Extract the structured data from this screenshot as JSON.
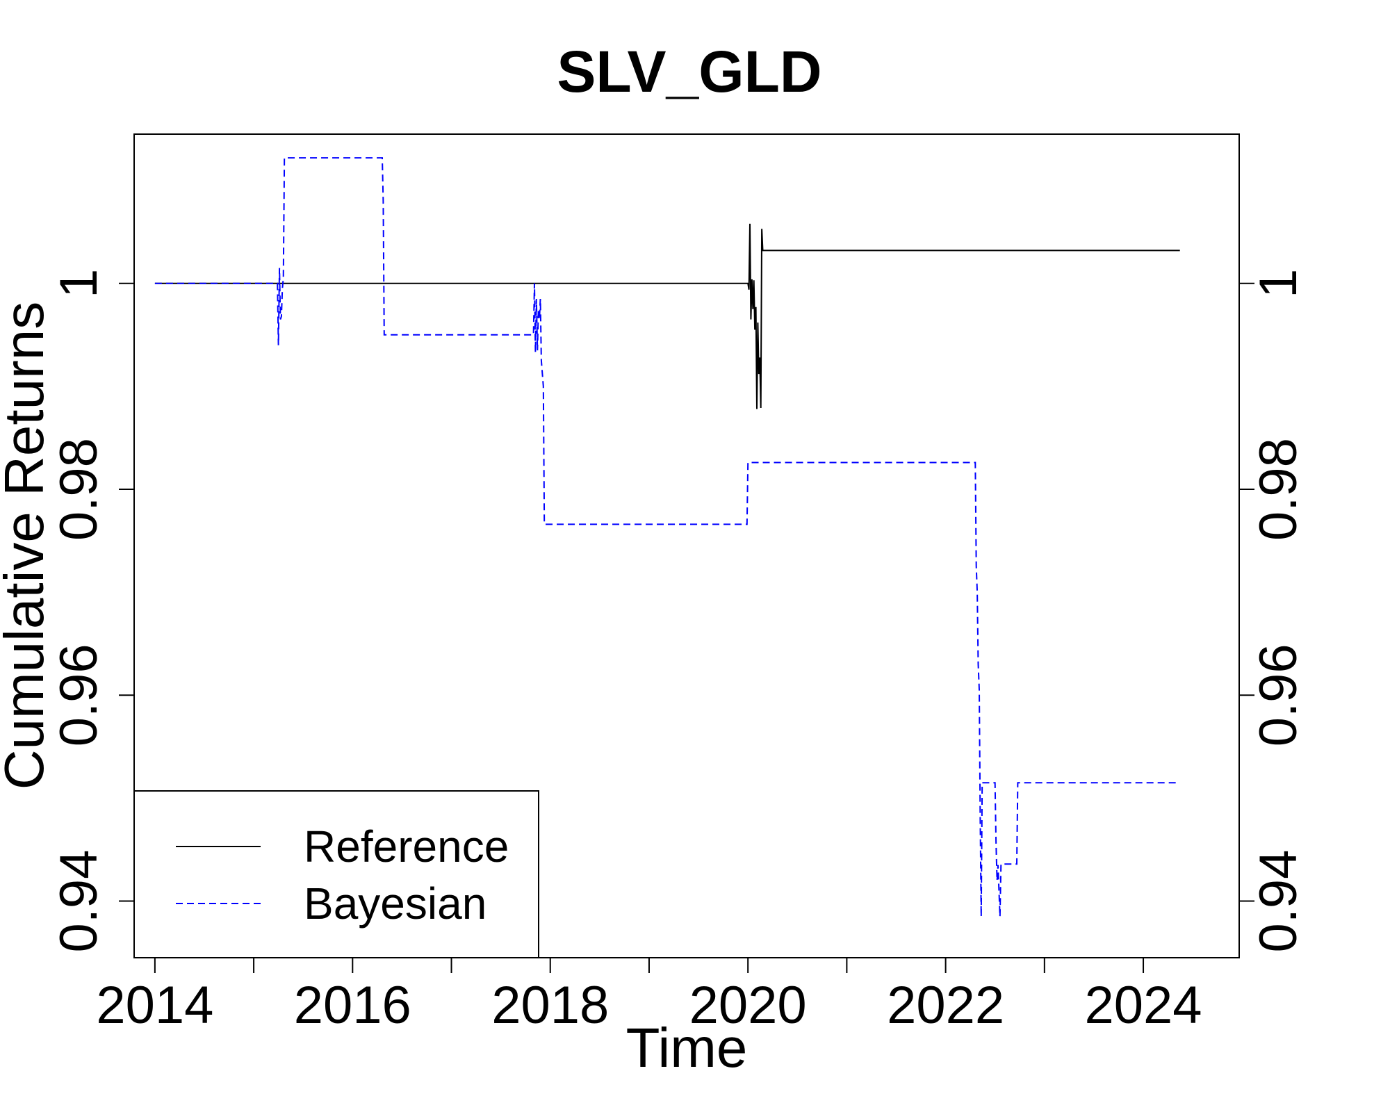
{
  "chart_data": {
    "type": "line",
    "title": "SLV_GLD",
    "xlabel": "Time",
    "ylabel": "Cumulative Returns",
    "xlim": [
      2013.79,
      2024.97
    ],
    "ylim": [
      0.9345,
      1.0145
    ],
    "x_ticks": [
      "2014",
      "2016",
      "2018",
      "2020",
      "2022",
      "2024"
    ],
    "x_tick_values": [
      2014,
      2016,
      2018,
      2020,
      2022,
      2024
    ],
    "x_minor_tick_values": [
      2015,
      2017,
      2019,
      2021,
      2023
    ],
    "y_ticks": [
      "0.94",
      "0.96",
      "0.98",
      "1"
    ],
    "y_tick_values": [
      0.94,
      0.96,
      0.98,
      1.0
    ],
    "grid": false,
    "legend_position": "bottom-left",
    "series": [
      {
        "name": "Reference",
        "color": "#000000",
        "style": "solid",
        "x": [
          2014.0,
          2020.0,
          2020.01,
          2020.02,
          2020.03,
          2020.04,
          2020.05,
          2020.06,
          2020.07,
          2020.08,
          2020.09,
          2020.1,
          2020.11,
          2020.12,
          2020.13,
          2020.14,
          2020.15,
          2024.37
        ],
        "y": [
          1.0,
          1.0,
          0.9994,
          1.0058,
          0.9965,
          1.0004,
          0.9975,
          1.0003,
          0.9955,
          0.9977,
          0.9878,
          0.9962,
          0.9912,
          0.9928,
          0.9879,
          1.0053,
          1.0032,
          1.0032
        ]
      },
      {
        "name": "Bayesian",
        "color": "#0000ff",
        "style": "dashed",
        "x": [
          2014.0,
          2015.24,
          2015.25,
          2015.26,
          2015.27,
          2015.28,
          2015.29,
          2015.3,
          2015.31,
          2016.3,
          2016.31,
          2016.32,
          2016.34,
          2017.83,
          2017.84,
          2017.85,
          2017.86,
          2017.87,
          2017.88,
          2017.89,
          2017.9,
          2017.91,
          2017.93,
          2017.94,
          2017.95,
          2019.99,
          2020.0,
          2022.3,
          2022.31,
          2022.32,
          2022.33,
          2022.34,
          2022.35,
          2022.36,
          2022.37,
          2022.38,
          2022.39,
          2022.5,
          2022.51,
          2022.52,
          2022.53,
          2022.55,
          2022.56,
          2022.72,
          2022.73,
          2024.37
        ],
        "y": [
          1.0,
          1.0,
          0.994,
          1.0015,
          0.9965,
          0.9968,
          0.9995,
          1.0005,
          1.0122,
          1.0122,
          1.008,
          0.995,
          0.995,
          0.995,
          1.0,
          0.9933,
          0.9985,
          0.9935,
          0.9975,
          0.9965,
          0.9985,
          0.9925,
          0.99,
          0.9766,
          0.9766,
          0.9766,
          0.9826,
          0.9826,
          0.9725,
          0.97,
          0.963,
          0.9605,
          0.948,
          0.9385,
          0.9515,
          0.9515,
          0.9515,
          0.9515,
          0.9458,
          0.942,
          0.9435,
          0.9385,
          0.9436,
          0.9436,
          0.9515,
          0.9515
        ]
      }
    ]
  }
}
